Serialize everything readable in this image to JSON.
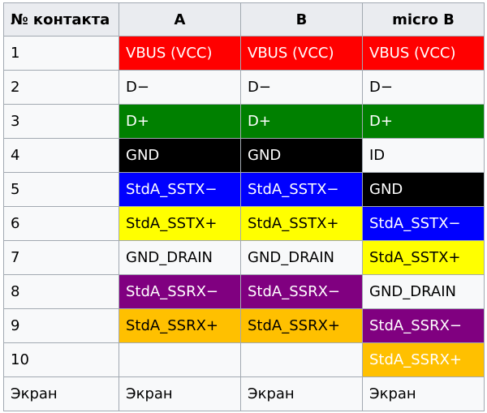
{
  "table": {
    "headers": [
      "№ контакта",
      "A",
      "B",
      "micro B"
    ],
    "rows": [
      {
        "pin": "1",
        "cells": [
          {
            "text": "VBUS (VCC)",
            "bg": "#ff0000",
            "fg": "#ffffff"
          },
          {
            "text": "VBUS (VCC)",
            "bg": "#ff0000",
            "fg": "#ffffff"
          },
          {
            "text": "VBUS (VCC)",
            "bg": "#ff0000",
            "fg": "#ffffff"
          }
        ]
      },
      {
        "pin": "2",
        "cells": [
          {
            "text": "D−",
            "bg": "#f8f9fa",
            "fg": "#000000"
          },
          {
            "text": "D−",
            "bg": "#f8f9fa",
            "fg": "#000000"
          },
          {
            "text": "D−",
            "bg": "#f8f9fa",
            "fg": "#000000"
          }
        ]
      },
      {
        "pin": "3",
        "cells": [
          {
            "text": "D+",
            "bg": "#008000",
            "fg": "#ffffff"
          },
          {
            "text": "D+",
            "bg": "#008000",
            "fg": "#ffffff"
          },
          {
            "text": "D+",
            "bg": "#008000",
            "fg": "#ffffff"
          }
        ]
      },
      {
        "pin": "4",
        "cells": [
          {
            "text": "GND",
            "bg": "#000000",
            "fg": "#ffffff"
          },
          {
            "text": "GND",
            "bg": "#000000",
            "fg": "#ffffff"
          },
          {
            "text": "ID",
            "bg": "#f8f9fa",
            "fg": "#000000"
          }
        ]
      },
      {
        "pin": "5",
        "cells": [
          {
            "text": "StdA_SSTX−",
            "bg": "#0000ff",
            "fg": "#ffffff"
          },
          {
            "text": "StdA_SSTX−",
            "bg": "#0000ff",
            "fg": "#ffffff"
          },
          {
            "text": "GND",
            "bg": "#000000",
            "fg": "#ffffff"
          }
        ]
      },
      {
        "pin": "6",
        "cells": [
          {
            "text": "StdA_SSTX+",
            "bg": "#ffff00",
            "fg": "#000000"
          },
          {
            "text": "StdA_SSTX+",
            "bg": "#ffff00",
            "fg": "#000000"
          },
          {
            "text": "StdA_SSTX−",
            "bg": "#0000ff",
            "fg": "#ffffff"
          }
        ]
      },
      {
        "pin": "7",
        "cells": [
          {
            "text": "GND_DRAIN",
            "bg": "#f8f9fa",
            "fg": "#000000"
          },
          {
            "text": "GND_DRAIN",
            "bg": "#f8f9fa",
            "fg": "#000000"
          },
          {
            "text": "StdA_SSTX+",
            "bg": "#ffff00",
            "fg": "#000000"
          }
        ]
      },
      {
        "pin": "8",
        "cells": [
          {
            "text": "StdA_SSRX−",
            "bg": "#800080",
            "fg": "#ffffff"
          },
          {
            "text": "StdA_SSRX−",
            "bg": "#800080",
            "fg": "#ffffff"
          },
          {
            "text": "GND_DRAIN",
            "bg": "#f8f9fa",
            "fg": "#000000"
          }
        ]
      },
      {
        "pin": "9",
        "cells": [
          {
            "text": "StdA_SSRX+",
            "bg": "#ffc000",
            "fg": "#000000"
          },
          {
            "text": "StdA_SSRX+",
            "bg": "#ffc000",
            "fg": "#000000"
          },
          {
            "text": "StdA_SSRX−",
            "bg": "#800080",
            "fg": "#ffffff"
          }
        ]
      },
      {
        "pin": "10",
        "cells": [
          {
            "text": "",
            "bg": "#f8f9fa",
            "fg": "#000000"
          },
          {
            "text": "",
            "bg": "#f8f9fa",
            "fg": "#000000"
          },
          {
            "text": "StdA_SSRX+",
            "bg": "#ffc000",
            "fg": "#ffffff"
          }
        ]
      },
      {
        "pin": "Экран",
        "cells": [
          {
            "text": "Экран",
            "bg": "#f8f9fa",
            "fg": "#000000"
          },
          {
            "text": "Экран",
            "bg": "#f8f9fa",
            "fg": "#000000"
          },
          {
            "text": "Экран",
            "bg": "#f8f9fa",
            "fg": "#000000"
          }
        ]
      }
    ]
  }
}
